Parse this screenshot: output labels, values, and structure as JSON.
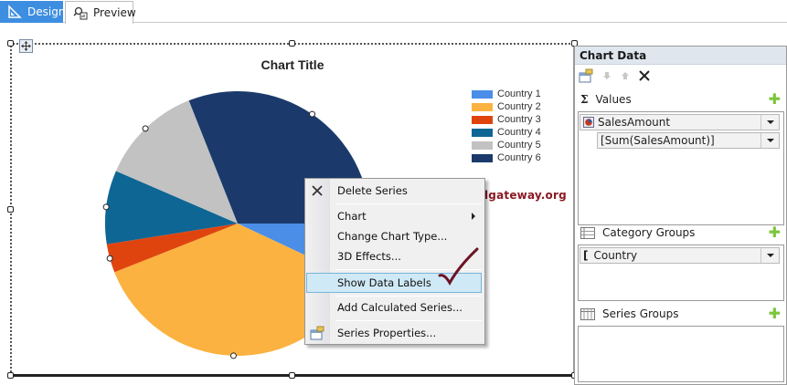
{
  "tabs": [
    {
      "label": "Design",
      "icon": "ruler-triangle-icon",
      "active": true
    },
    {
      "label": "Preview",
      "icon": "preview-magnifier-icon",
      "active": false
    }
  ],
  "chart": {
    "title": "Chart Title"
  },
  "chart_data": {
    "type": "pie",
    "title": "Chart Title",
    "categories": [
      "Country 1",
      "Country 2",
      "Country 3",
      "Country 4",
      "Country 5",
      "Country 6"
    ],
    "values": [
      7,
      37,
      3.5,
      9,
      12.5,
      31
    ],
    "colors": [
      "#4a8ee8",
      "#fbb240",
      "#e0440e",
      "#0e6694",
      "#c2c2c2",
      "#1b3a6b"
    ],
    "legend_position": "right-top",
    "start_angle_deg": 0,
    "direction": "clockwise"
  },
  "legend": {
    "items": [
      {
        "label": "Country 1",
        "color": "#4a8ee8"
      },
      {
        "label": "Country 2",
        "color": "#fbb240"
      },
      {
        "label": "Country 3",
        "color": "#e0440e"
      },
      {
        "label": "Country 4",
        "color": "#0e6694"
      },
      {
        "label": "Country 5",
        "color": "#c2c2c2"
      },
      {
        "label": "Country 6",
        "color": "#1b3a6b"
      }
    ]
  },
  "context_menu": {
    "items": [
      {
        "label": "Delete Series",
        "icon": "close-x-icon"
      },
      {
        "label": "Chart",
        "submenu": true
      },
      {
        "label": "Change Chart Type..."
      },
      {
        "label": "3D Effects..."
      },
      {
        "label": "Show Data Labels",
        "highlighted": true
      },
      {
        "label": "Add Calculated Series..."
      },
      {
        "label": "Series Properties...",
        "icon": "properties-icon"
      }
    ]
  },
  "watermark": "©tutorialgateway.org",
  "chart_data_pane": {
    "title": "Chart Data",
    "values": {
      "label": "Values",
      "field": "SalesAmount",
      "expression": "[Sum(SalesAmount)]"
    },
    "category_groups": {
      "label": "Category Groups",
      "field": "Country"
    },
    "series_groups": {
      "label": "Series Groups"
    }
  }
}
